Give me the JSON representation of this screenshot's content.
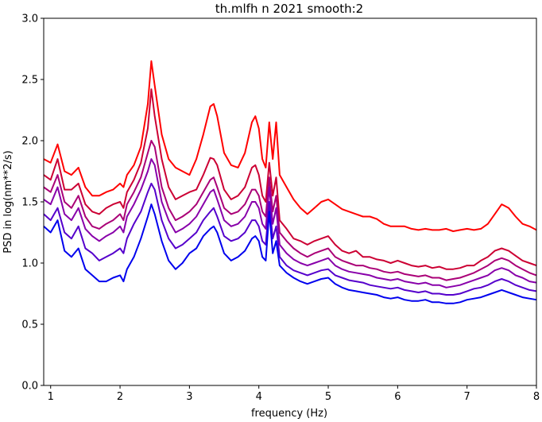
{
  "chart_data": {
    "type": "line",
    "title": "th.mlfh n 2021 smooth:2",
    "xlabel": "frequency (Hz)",
    "ylabel": "PSD in log(nm**2/s)",
    "xlim": [
      0.9,
      8.0
    ],
    "ylim": [
      0.0,
      3.0
    ],
    "xticks": [
      "1",
      "2",
      "3",
      "4",
      "5",
      "6",
      "7",
      "8"
    ],
    "yticks": [
      "0.0",
      "0.5",
      "1.0",
      "1.5",
      "2.0",
      "2.5",
      "3.0"
    ],
    "grid": false,
    "legend": "none",
    "x": [
      0.9,
      1.0,
      1.1,
      1.2,
      1.3,
      1.4,
      1.5,
      1.6,
      1.7,
      1.8,
      1.9,
      2.0,
      2.05,
      2.1,
      2.2,
      2.3,
      2.4,
      2.45,
      2.5,
      2.6,
      2.7,
      2.8,
      2.9,
      3.0,
      3.1,
      3.2,
      3.3,
      3.35,
      3.4,
      3.5,
      3.6,
      3.7,
      3.8,
      3.9,
      3.95,
      4.0,
      4.05,
      4.1,
      4.15,
      4.2,
      4.25,
      4.3,
      4.4,
      4.5,
      4.6,
      4.7,
      4.8,
      4.9,
      5.0,
      5.1,
      5.2,
      5.3,
      5.4,
      5.5,
      5.6,
      5.7,
      5.8,
      5.9,
      6.0,
      6.1,
      6.2,
      6.3,
      6.4,
      6.5,
      6.6,
      6.7,
      6.8,
      6.9,
      7.0,
      7.1,
      7.2,
      7.3,
      7.4,
      7.5,
      7.6,
      7.7,
      7.8,
      7.9,
      8.0
    ],
    "series": [
      {
        "color": "#ff0000",
        "values": [
          1.85,
          1.82,
          1.97,
          1.75,
          1.72,
          1.78,
          1.62,
          1.55,
          1.55,
          1.58,
          1.6,
          1.65,
          1.62,
          1.72,
          1.8,
          1.95,
          2.3,
          2.65,
          2.45,
          2.05,
          1.85,
          1.78,
          1.75,
          1.72,
          1.85,
          2.05,
          2.28,
          2.3,
          2.2,
          1.9,
          1.8,
          1.78,
          1.9,
          2.15,
          2.2,
          2.1,
          1.85,
          1.78,
          2.15,
          1.85,
          2.15,
          1.72,
          1.62,
          1.52,
          1.45,
          1.4,
          1.45,
          1.5,
          1.52,
          1.48,
          1.44,
          1.42,
          1.4,
          1.38,
          1.38,
          1.36,
          1.32,
          1.3,
          1.3,
          1.3,
          1.28,
          1.27,
          1.28,
          1.27,
          1.27,
          1.28,
          1.26,
          1.27,
          1.28,
          1.27,
          1.28,
          1.32,
          1.4,
          1.48,
          1.45,
          1.38,
          1.32,
          1.3,
          1.27
        ]
      },
      {
        "color": "#cc0033",
        "values": [
          1.72,
          1.68,
          1.85,
          1.6,
          1.6,
          1.65,
          1.48,
          1.42,
          1.4,
          1.45,
          1.48,
          1.5,
          1.45,
          1.58,
          1.68,
          1.82,
          2.1,
          2.42,
          2.2,
          1.85,
          1.62,
          1.52,
          1.55,
          1.58,
          1.6,
          1.72,
          1.86,
          1.85,
          1.8,
          1.6,
          1.52,
          1.55,
          1.62,
          1.78,
          1.8,
          1.72,
          1.55,
          1.5,
          1.82,
          1.55,
          1.7,
          1.35,
          1.28,
          1.2,
          1.18,
          1.15,
          1.18,
          1.2,
          1.22,
          1.15,
          1.1,
          1.08,
          1.1,
          1.05,
          1.05,
          1.03,
          1.02,
          1.0,
          1.02,
          1.0,
          0.98,
          0.97,
          0.98,
          0.96,
          0.97,
          0.95,
          0.95,
          0.96,
          0.98,
          0.98,
          1.02,
          1.05,
          1.1,
          1.12,
          1.1,
          1.06,
          1.02,
          1.0,
          0.98
        ]
      },
      {
        "color": "#aa0077",
        "values": [
          1.62,
          1.58,
          1.72,
          1.5,
          1.45,
          1.55,
          1.38,
          1.3,
          1.28,
          1.32,
          1.35,
          1.4,
          1.35,
          1.48,
          1.58,
          1.7,
          1.9,
          2.0,
          1.95,
          1.62,
          1.45,
          1.35,
          1.38,
          1.42,
          1.48,
          1.58,
          1.68,
          1.7,
          1.62,
          1.45,
          1.4,
          1.42,
          1.48,
          1.6,
          1.6,
          1.55,
          1.42,
          1.38,
          1.7,
          1.42,
          1.55,
          1.25,
          1.18,
          1.12,
          1.08,
          1.05,
          1.08,
          1.1,
          1.12,
          1.05,
          1.02,
          1.0,
          0.98,
          0.98,
          0.96,
          0.95,
          0.93,
          0.92,
          0.93,
          0.91,
          0.9,
          0.89,
          0.9,
          0.88,
          0.88,
          0.86,
          0.87,
          0.88,
          0.9,
          0.92,
          0.95,
          0.98,
          1.02,
          1.04,
          1.02,
          0.98,
          0.95,
          0.92,
          0.9
        ]
      },
      {
        "color": "#8800aa",
        "values": [
          1.52,
          1.48,
          1.62,
          1.4,
          1.35,
          1.45,
          1.28,
          1.22,
          1.18,
          1.22,
          1.25,
          1.3,
          1.25,
          1.38,
          1.48,
          1.6,
          1.75,
          1.85,
          1.8,
          1.5,
          1.35,
          1.25,
          1.28,
          1.32,
          1.38,
          1.48,
          1.58,
          1.6,
          1.52,
          1.35,
          1.3,
          1.32,
          1.38,
          1.5,
          1.5,
          1.45,
          1.32,
          1.28,
          1.62,
          1.32,
          1.45,
          1.15,
          1.08,
          1.03,
          1.0,
          0.98,
          1.0,
          1.02,
          1.04,
          0.98,
          0.95,
          0.93,
          0.92,
          0.91,
          0.9,
          0.88,
          0.87,
          0.86,
          0.87,
          0.85,
          0.84,
          0.83,
          0.84,
          0.82,
          0.82,
          0.8,
          0.81,
          0.82,
          0.84,
          0.86,
          0.88,
          0.9,
          0.94,
          0.96,
          0.94,
          0.9,
          0.88,
          0.85,
          0.84
        ]
      },
      {
        "color": "#5500cc",
        "values": [
          1.4,
          1.35,
          1.45,
          1.25,
          1.2,
          1.3,
          1.12,
          1.08,
          1.02,
          1.05,
          1.08,
          1.12,
          1.08,
          1.2,
          1.32,
          1.42,
          1.58,
          1.65,
          1.6,
          1.35,
          1.2,
          1.12,
          1.15,
          1.2,
          1.25,
          1.35,
          1.42,
          1.45,
          1.38,
          1.22,
          1.18,
          1.2,
          1.25,
          1.35,
          1.35,
          1.3,
          1.18,
          1.15,
          1.5,
          1.2,
          1.3,
          1.05,
          0.98,
          0.94,
          0.92,
          0.9,
          0.92,
          0.94,
          0.95,
          0.9,
          0.88,
          0.86,
          0.85,
          0.84,
          0.82,
          0.81,
          0.8,
          0.79,
          0.8,
          0.78,
          0.77,
          0.76,
          0.77,
          0.75,
          0.75,
          0.74,
          0.74,
          0.75,
          0.77,
          0.79,
          0.8,
          0.82,
          0.85,
          0.87,
          0.85,
          0.82,
          0.8,
          0.78,
          0.77
        ]
      },
      {
        "color": "#0000ee",
        "values": [
          1.3,
          1.25,
          1.35,
          1.1,
          1.05,
          1.12,
          0.95,
          0.9,
          0.85,
          0.85,
          0.88,
          0.9,
          0.85,
          0.95,
          1.05,
          1.2,
          1.38,
          1.48,
          1.4,
          1.18,
          1.02,
          0.95,
          1.0,
          1.08,
          1.12,
          1.22,
          1.28,
          1.3,
          1.25,
          1.08,
          1.02,
          1.05,
          1.1,
          1.2,
          1.22,
          1.18,
          1.05,
          1.02,
          1.42,
          1.08,
          1.18,
          0.98,
          0.92,
          0.88,
          0.85,
          0.83,
          0.85,
          0.87,
          0.88,
          0.83,
          0.8,
          0.78,
          0.77,
          0.76,
          0.75,
          0.74,
          0.72,
          0.71,
          0.72,
          0.7,
          0.69,
          0.69,
          0.7,
          0.68,
          0.68,
          0.67,
          0.67,
          0.68,
          0.7,
          0.71,
          0.72,
          0.74,
          0.76,
          0.78,
          0.76,
          0.74,
          0.72,
          0.71,
          0.7
        ]
      }
    ]
  }
}
